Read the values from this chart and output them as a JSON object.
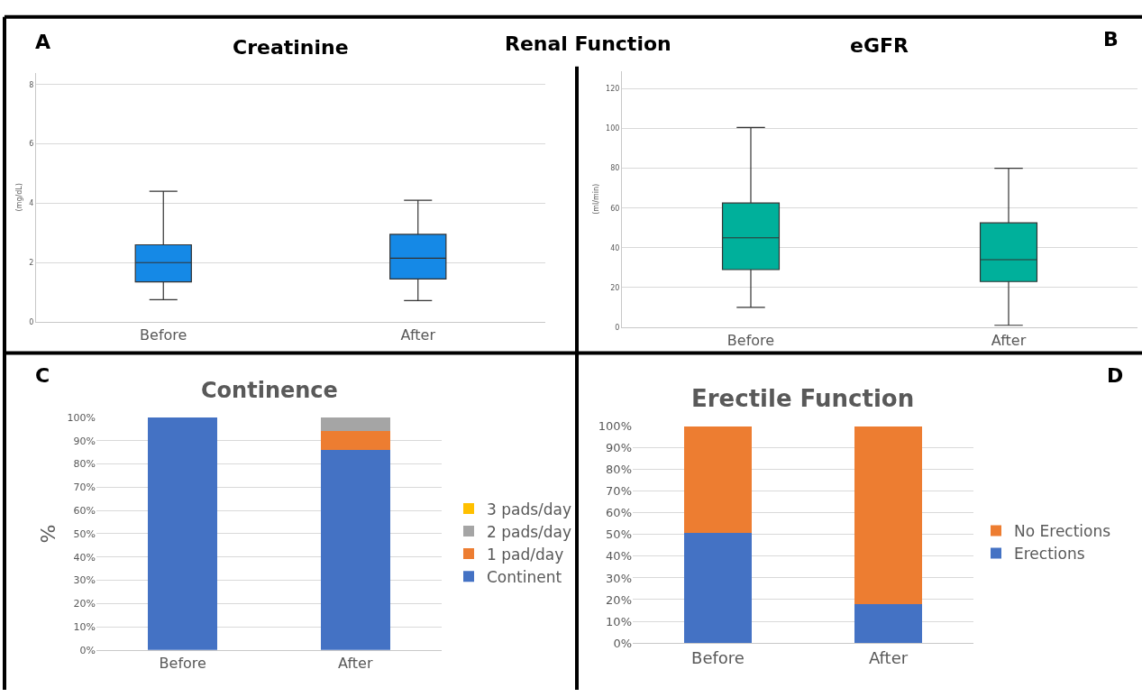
{
  "chart_data": [
    {
      "type": "box",
      "title": "Creatinine",
      "ylabel": "(mg/dL)",
      "annotations": [
        "A",
        "Renal Function"
      ],
      "categories": [
        "Before",
        "After"
      ],
      "series": [
        {
          "color": "#1589e6",
          "boxes": [
            {
              "low": 0.75,
              "q1": 1.35,
              "median": 2.0,
              "q3": 2.6,
              "high": 4.4
            },
            {
              "low": 0.72,
              "q1": 1.45,
              "median": 2.15,
              "q3": 2.95,
              "high": 4.1
            }
          ]
        }
      ],
      "ylim": [
        0,
        8.4
      ],
      "yticks": [
        0,
        2,
        4,
        6,
        8
      ],
      "grid": "y",
      "legend": false
    },
    {
      "type": "box",
      "title": "eGFR",
      "ylabel": "(ml/min)",
      "annotations": [
        "B"
      ],
      "categories": [
        "Before",
        "After"
      ],
      "series": [
        {
          "color": "#00b09b",
          "boxes": [
            {
              "low": 10,
              "q1": 29,
              "median": 45,
              "q3": 62.5,
              "high": 100.5
            },
            {
              "low": 1,
              "q1": 23,
              "median": 34,
              "q3": 52.5,
              "high": 80
            }
          ]
        }
      ],
      "ylim": [
        0,
        129
      ],
      "yticks": [
        0,
        20,
        40,
        60,
        80,
        100,
        120
      ],
      "grid": "y",
      "legend": false
    },
    {
      "type": "bar",
      "stacked": true,
      "title": "Continence",
      "ylabel": "%",
      "annotations": [
        "C"
      ],
      "categories": [
        "Before",
        "After"
      ],
      "series": [
        {
          "name": "Continent",
          "color": "#4472c4",
          "values": [
            100,
            86
          ]
        },
        {
          "name": "1 pad/day",
          "color": "#ed7d31",
          "values": [
            0,
            8
          ]
        },
        {
          "name": "2 pads/day",
          "color": "#a5a5a5",
          "values": [
            0,
            6
          ]
        },
        {
          "name": "3 pads/day",
          "color": "#ffc000",
          "values": [
            0,
            0
          ]
        }
      ],
      "ylim": [
        0,
        100
      ],
      "yticks": [
        {
          "value": 0,
          "label": "0%"
        },
        {
          "value": 10,
          "label": "10%"
        },
        {
          "value": 20,
          "label": "20%"
        },
        {
          "value": 30,
          "label": "30%"
        },
        {
          "value": 40,
          "label": "40%"
        },
        {
          "value": 50,
          "label": "50%"
        },
        {
          "value": 60,
          "label": "60%"
        },
        {
          "value": 70,
          "label": "70%"
        },
        {
          "value": 80,
          "label": "80%"
        },
        {
          "value": 90,
          "label": "90%"
        },
        {
          "value": 100,
          "label": "100%"
        }
      ],
      "grid": "y",
      "legend": "right"
    },
    {
      "type": "bar",
      "stacked": true,
      "title": "Erectile Function",
      "annotations": [
        "D"
      ],
      "categories": [
        "Before",
        "After"
      ],
      "series": [
        {
          "name": "Erections",
          "color": "#4472c4",
          "values": [
            51,
            18
          ]
        },
        {
          "name": "No Erections",
          "color": "#ed7d31",
          "values": [
            49,
            82
          ]
        }
      ],
      "ylim": [
        0,
        100
      ],
      "yticks": [
        {
          "value": 0,
          "label": "0%"
        },
        {
          "value": 10,
          "label": "10%"
        },
        {
          "value": 20,
          "label": "20%"
        },
        {
          "value": 30,
          "label": "30%"
        },
        {
          "value": 40,
          "label": "40%"
        },
        {
          "value": 50,
          "label": "50%"
        },
        {
          "value": 60,
          "label": "60%"
        },
        {
          "value": 70,
          "label": "70%"
        },
        {
          "value": 80,
          "label": "80%"
        },
        {
          "value": 90,
          "label": "90%"
        },
        {
          "value": 100,
          "label": "100%"
        }
      ],
      "grid": "y",
      "legend": "right"
    }
  ]
}
